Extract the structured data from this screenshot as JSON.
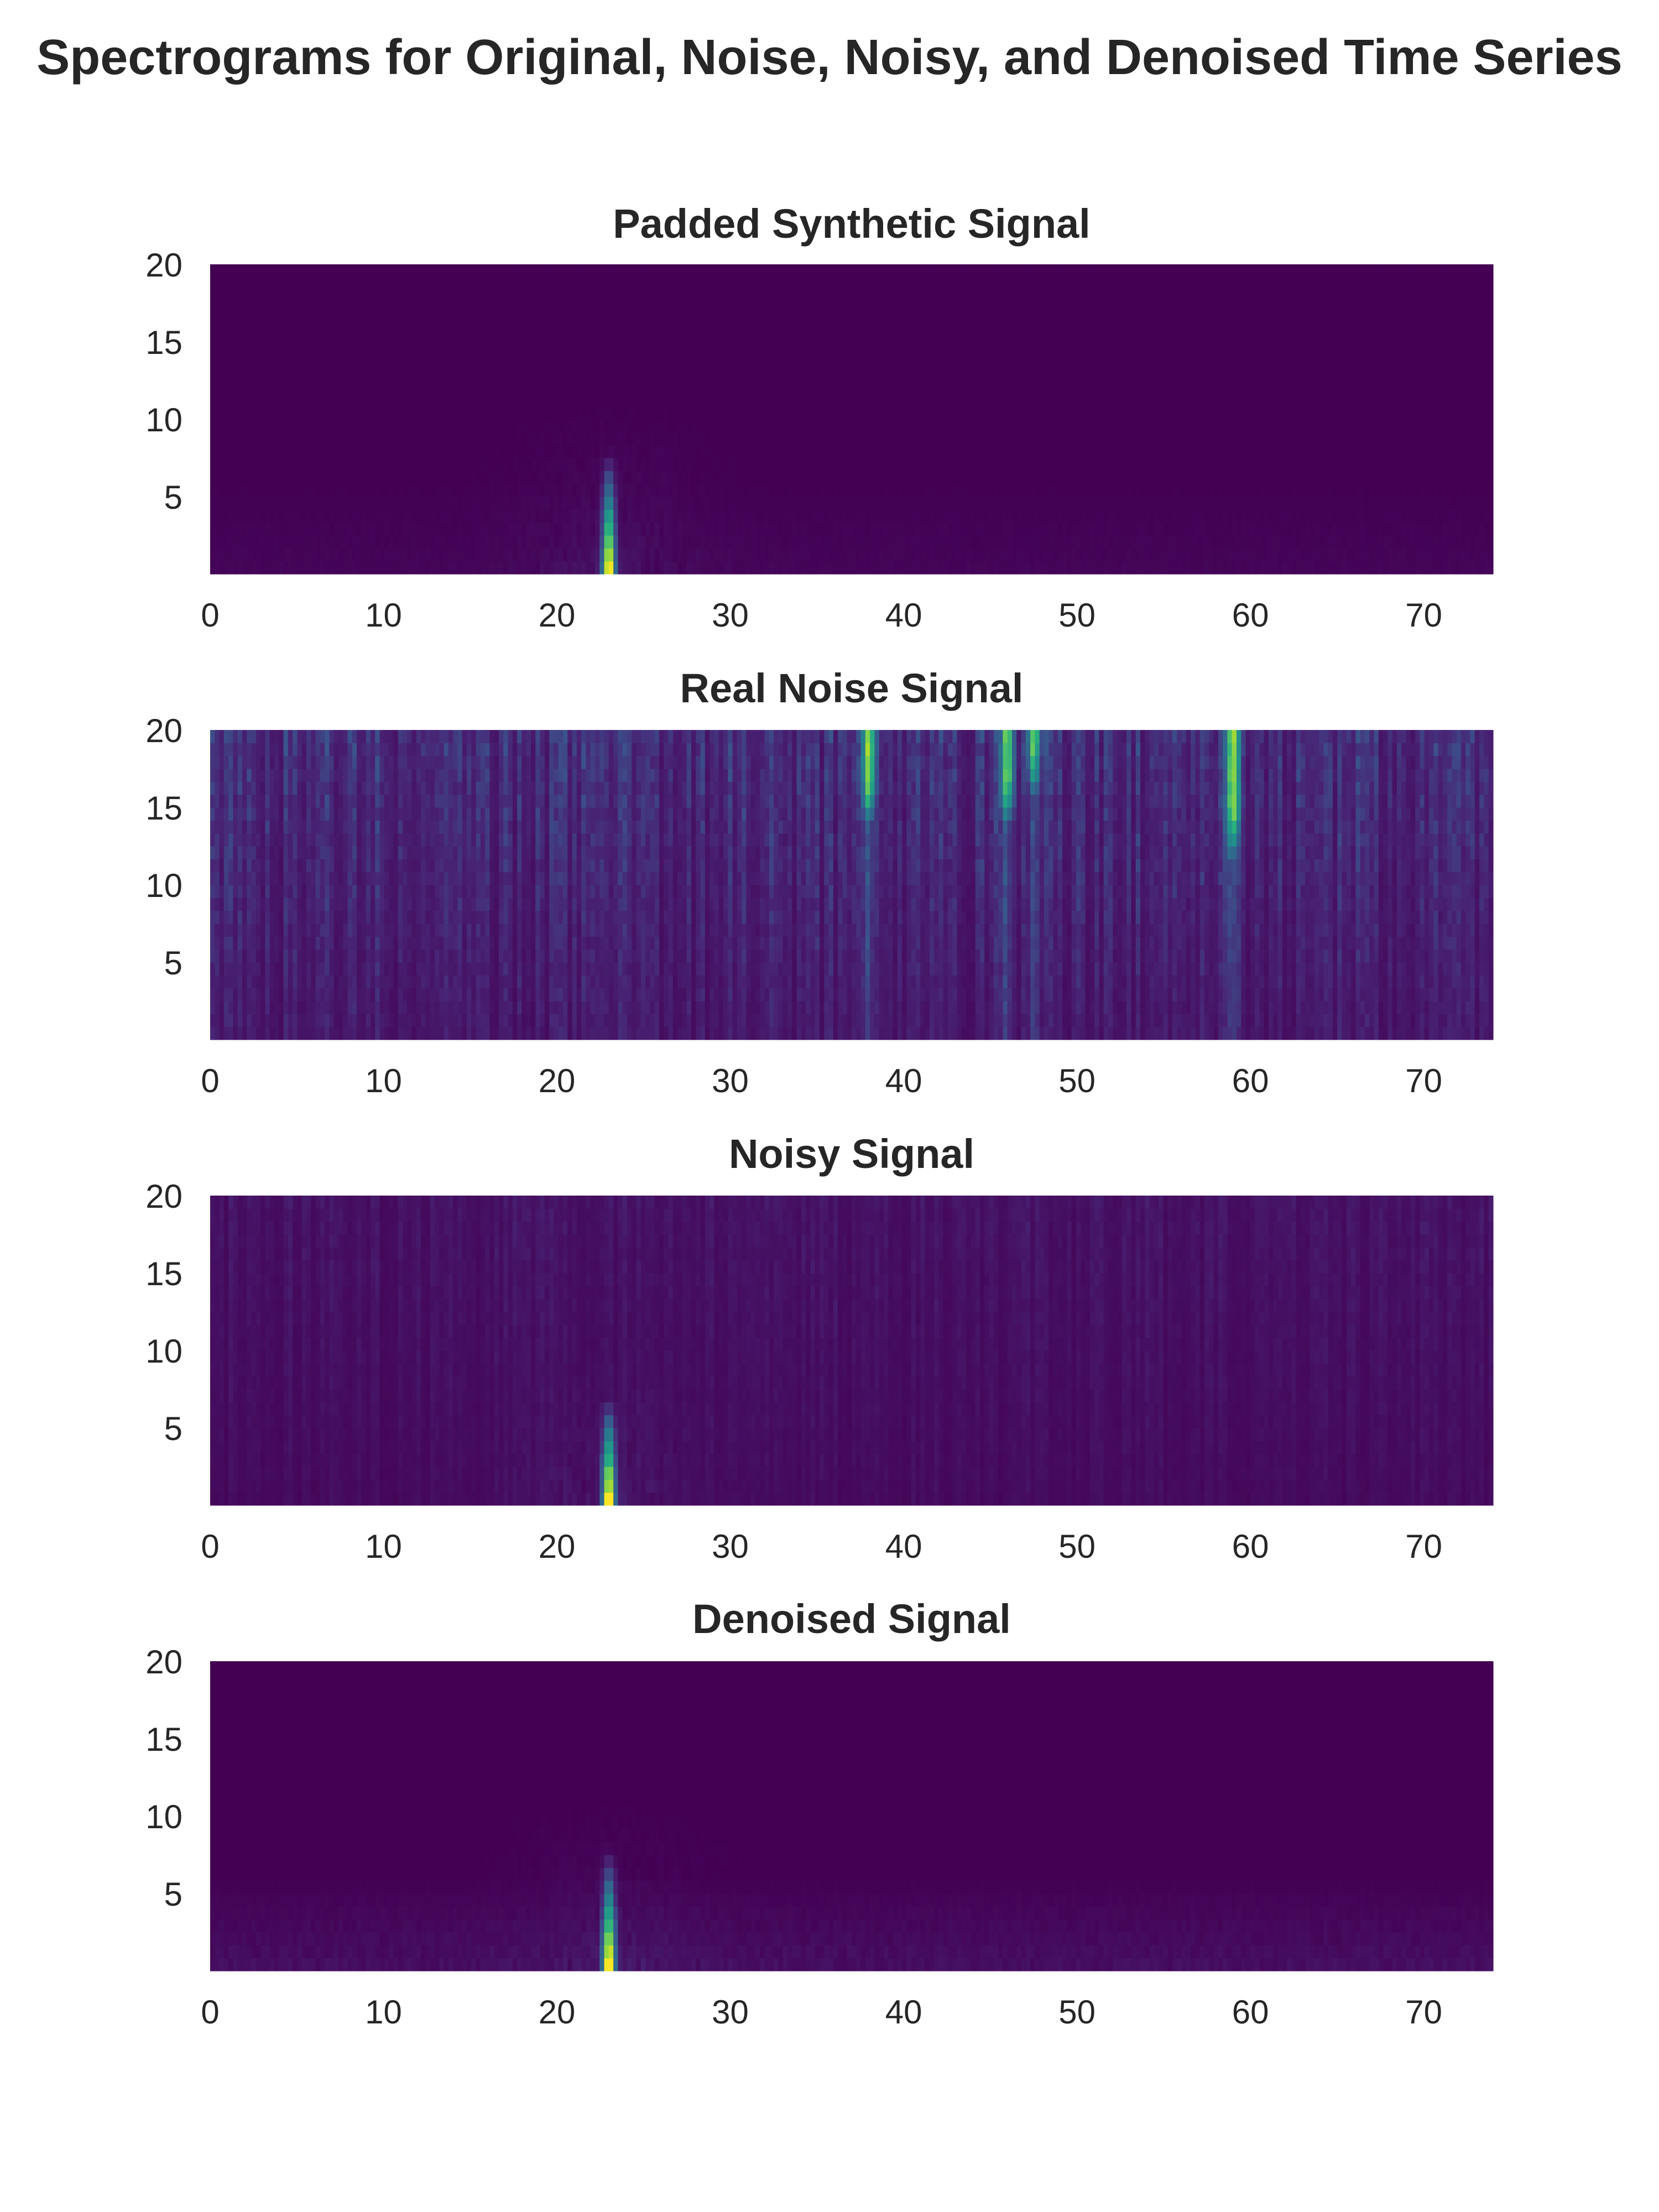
{
  "figure": {
    "title": "Spectrograms for Original, Noise, Noisy, and Denoised Time Series"
  },
  "colors": {
    "background": "#ffffff",
    "text": "#262626",
    "colormap": "viridis",
    "low": "#440154",
    "high": "#fde725"
  },
  "chart_data": [
    {
      "type": "heatmap",
      "title": "Padded Synthetic Signal",
      "xlabel": "",
      "ylabel": "",
      "xlim": [
        0,
        74
      ],
      "ylim": [
        0,
        20
      ],
      "x_ticks": [
        "0",
        "10",
        "20",
        "30",
        "40",
        "50",
        "60",
        "70"
      ],
      "y_ticks": [
        "5",
        "10",
        "15",
        "20"
      ],
      "pattern": "mostly zero energy; single broadband transient near t = 23, strongest at low frequencies (0-7) with faint spread to about t = 20-32",
      "features": [
        {
          "time": 23,
          "freq_max": 8,
          "peak": 1.0
        }
      ]
    },
    {
      "type": "heatmap",
      "title": "Real Noise Signal",
      "xlabel": "",
      "ylabel": "",
      "xlim": [
        0,
        74
      ],
      "ylim": [
        0,
        20
      ],
      "x_ticks": [
        "0",
        "10",
        "20",
        "30",
        "40",
        "50",
        "60",
        "70"
      ],
      "y_ticks": [
        "5",
        "10",
        "15",
        "20"
      ],
      "pattern": "broadband noise across all times, energy increasing toward higher frequencies; bright vertical streaks near t = 38, 46, 47.5, 59",
      "features": [
        {
          "time": 38,
          "freq_min": 14,
          "peak": 0.9
        },
        {
          "time": 46,
          "freq_min": 14,
          "peak": 0.85
        },
        {
          "time": 47.5,
          "freq_min": 16,
          "peak": 0.8
        },
        {
          "time": 59,
          "freq_min": 12,
          "peak": 0.95
        }
      ]
    },
    {
      "type": "heatmap",
      "title": "Noisy Signal",
      "xlabel": "",
      "ylabel": "",
      "xlim": [
        0,
        74
      ],
      "ylim": [
        0,
        20
      ],
      "x_ticks": [
        "0",
        "10",
        "20",
        "30",
        "40",
        "50",
        "60",
        "70"
      ],
      "y_ticks": [
        "5",
        "10",
        "15",
        "20"
      ],
      "pattern": "low-level broadband noise everywhere with the transient near t = 23 visible at low frequencies",
      "features": [
        {
          "time": 23,
          "freq_max": 7,
          "peak": 1.0
        }
      ]
    },
    {
      "type": "heatmap",
      "title": "Denoised Signal",
      "xlabel": "",
      "ylabel": "",
      "xlim": [
        0,
        74
      ],
      "ylim": [
        0,
        20
      ],
      "x_ticks": [
        "0",
        "10",
        "20",
        "30",
        "40",
        "50",
        "60",
        "70"
      ],
      "y_ticks": [
        "5",
        "10",
        "15",
        "20"
      ],
      "pattern": "noise largely removed; transient near t = 23 recovered at low frequencies with faint residual low-frequency texture",
      "features": [
        {
          "time": 23,
          "freq_max": 8,
          "peak": 1.0
        }
      ]
    }
  ]
}
